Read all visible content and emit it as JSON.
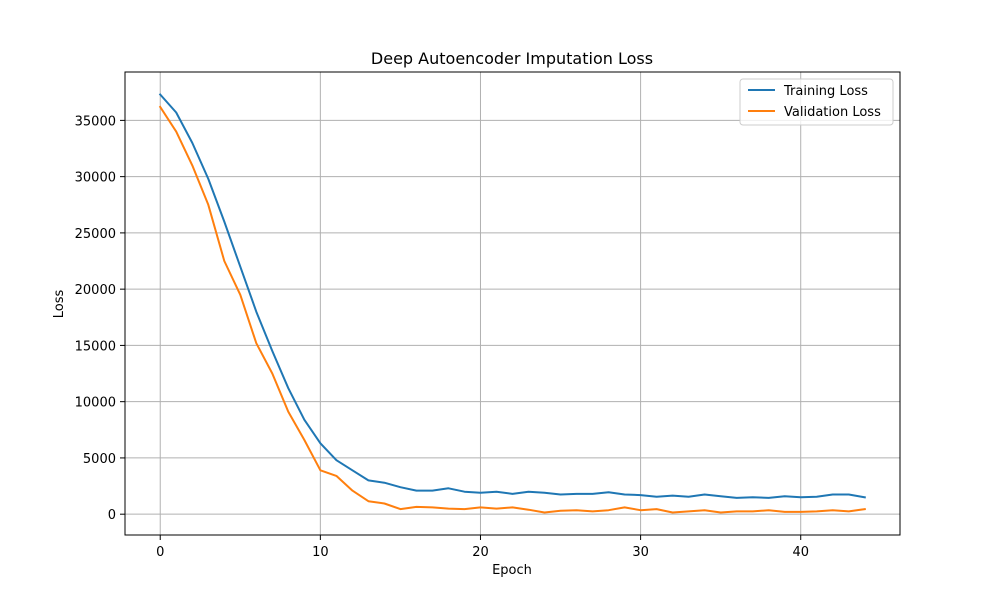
{
  "chart_data": {
    "type": "line",
    "title": "Deep Autoencoder Imputation Loss",
    "xlabel": "Epoch",
    "ylabel": "Loss",
    "xlim": [
      -2.2,
      46.2
    ],
    "ylim": [
      -1850,
      39300
    ],
    "xticks": [
      0,
      10,
      20,
      30,
      40
    ],
    "yticks": [
      0,
      5000,
      10000,
      15000,
      20000,
      25000,
      30000,
      35000
    ],
    "grid": true,
    "legend_position": "top-right",
    "x": [
      0,
      1,
      2,
      3,
      4,
      5,
      6,
      7,
      8,
      9,
      10,
      11,
      12,
      13,
      14,
      15,
      16,
      17,
      18,
      19,
      20,
      21,
      22,
      23,
      24,
      25,
      26,
      27,
      28,
      29,
      30,
      31,
      32,
      33,
      34,
      35,
      36,
      37,
      38,
      39,
      40,
      41,
      42,
      43,
      44
    ],
    "series": [
      {
        "name": "Training Loss",
        "color": "#1f77b4",
        "values": [
          37300,
          35700,
          33000,
          29800,
          26000,
          22000,
          18000,
          14500,
          11200,
          8400,
          6300,
          4800,
          3900,
          3000,
          2800,
          2400,
          2100,
          2100,
          2300,
          2000,
          1900,
          2000,
          1800,
          2000,
          1900,
          1750,
          1800,
          1800,
          1950,
          1750,
          1700,
          1550,
          1650,
          1550,
          1750,
          1600,
          1450,
          1500,
          1450,
          1600,
          1500,
          1550,
          1750,
          1750,
          1500
        ]
      },
      {
        "name": "Validation Loss",
        "color": "#ff7f0e",
        "values": [
          36200,
          34000,
          31000,
          27500,
          22500,
          19500,
          15200,
          12500,
          9100,
          6600,
          3900,
          3400,
          2100,
          1150,
          950,
          450,
          650,
          600,
          500,
          450,
          600,
          500,
          600,
          400,
          150,
          300,
          350,
          250,
          350,
          600,
          350,
          450,
          150,
          250,
          350,
          150,
          250,
          250,
          350,
          200,
          200,
          250,
          350,
          250,
          450
        ]
      }
    ]
  }
}
